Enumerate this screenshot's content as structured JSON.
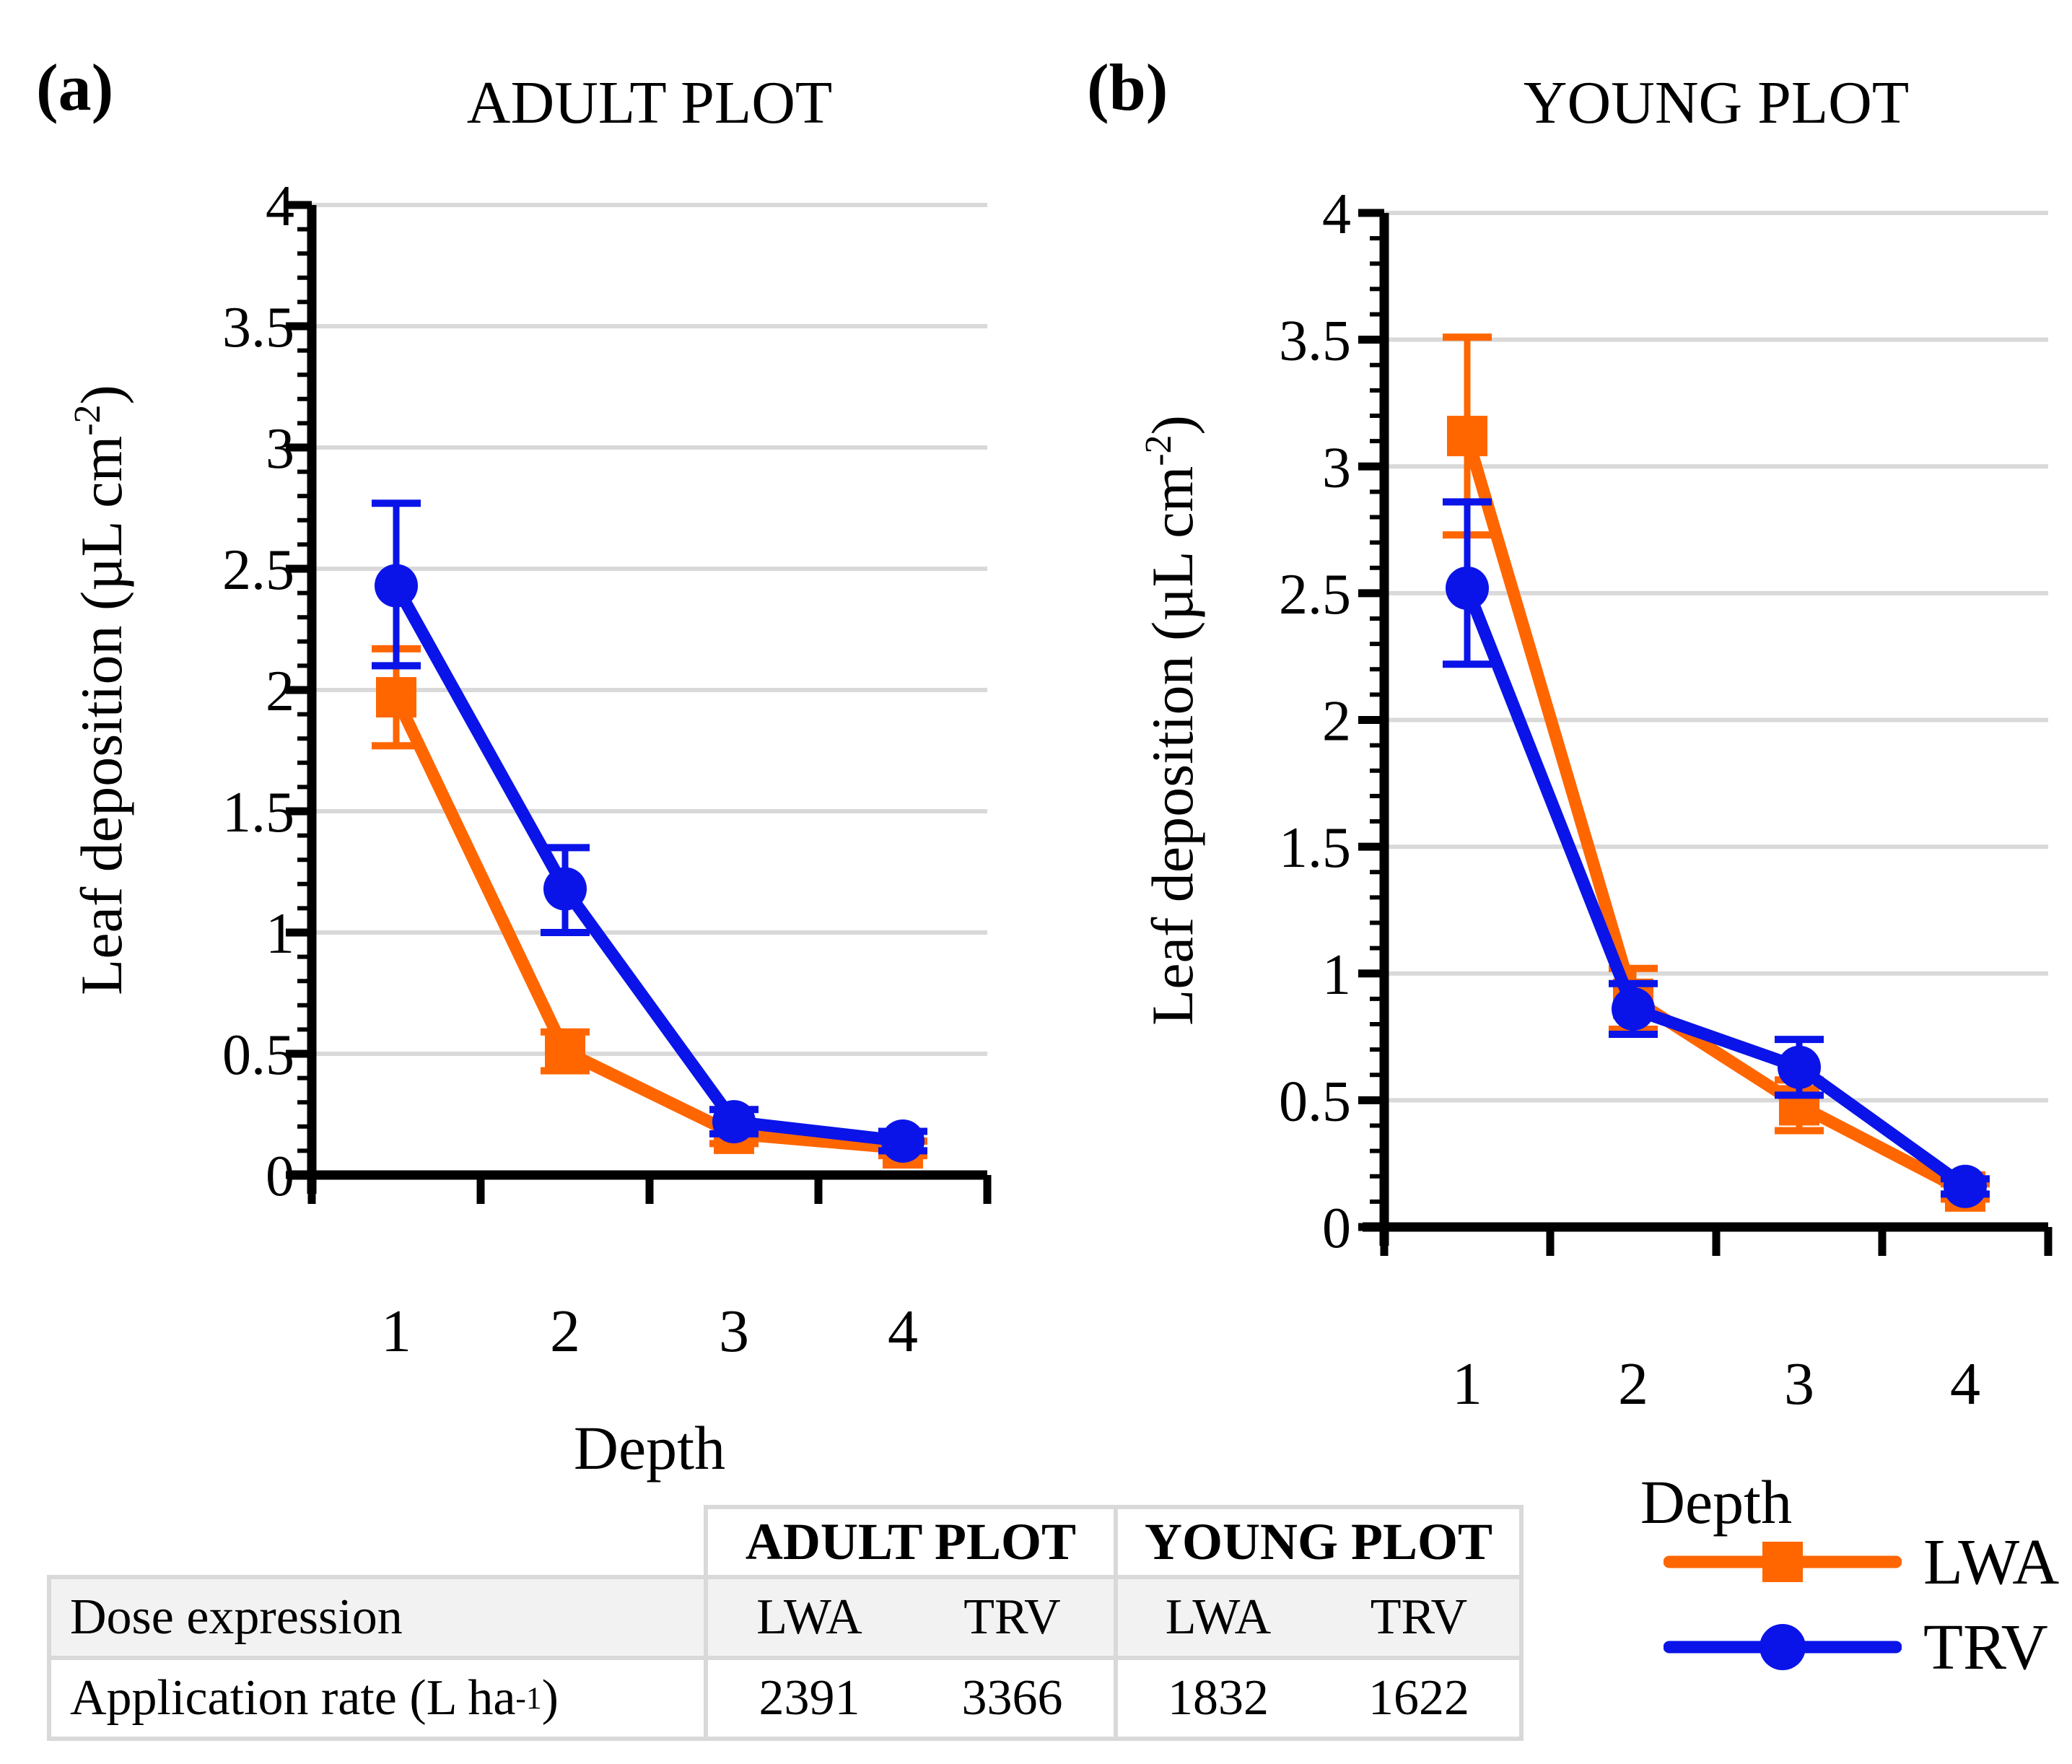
{
  "colors": {
    "lwa": "#FF6600",
    "trv": "#0A14E8",
    "grid": "#D9D9D9",
    "table_border": "#D9D9D9",
    "row_shade": "#F2F2F2"
  },
  "chart_data": [
    {
      "type": "line",
      "panel_label": "(a)",
      "title": "ADULT PLOT",
      "xlabel": "Depth",
      "ylabel_main": "Leaf deposition (µL cm",
      "ylabel_sup": "-2",
      "ylabel_close": ")",
      "categories": [
        "1",
        "2",
        "3",
        "4"
      ],
      "ylim": [
        0,
        4
      ],
      "ytick_step": 0.5,
      "yminor_step": 0.1,
      "grid": true,
      "series": [
        {
          "name": "LWA",
          "color": "#FF6600",
          "marker": "square",
          "values": [
            1.97,
            0.51,
            0.17,
            0.11
          ],
          "err_low": [
            1.77,
            0.43,
            0.13,
            0.08
          ],
          "err_high": [
            2.17,
            0.59,
            0.21,
            0.14
          ]
        },
        {
          "name": "TRV",
          "color": "#0A14E8",
          "marker": "circle",
          "values": [
            2.43,
            1.18,
            0.22,
            0.14
          ],
          "err_low": [
            2.1,
            1.0,
            0.17,
            0.1
          ],
          "err_high": [
            2.77,
            1.35,
            0.27,
            0.18
          ]
        }
      ]
    },
    {
      "type": "line",
      "panel_label": "(b)",
      "title": "YOUNG PLOT",
      "xlabel": "Depth",
      "ylabel_main": "Leaf deposition (µL cm",
      "ylabel_sup": "-2",
      "ylabel_close": ")",
      "categories": [
        "1",
        "2",
        "3",
        "4"
      ],
      "ylim": [
        0,
        4
      ],
      "ytick_step": 0.5,
      "yminor_step": 0.1,
      "grid": true,
      "series": [
        {
          "name": "LWA",
          "color": "#FF6600",
          "marker": "square",
          "values": [
            3.12,
            0.9,
            0.48,
            0.14
          ],
          "err_low": [
            2.73,
            0.78,
            0.38,
            0.11
          ],
          "err_high": [
            3.51,
            1.02,
            0.58,
            0.17
          ]
        },
        {
          "name": "TRV",
          "color": "#0A14E8",
          "marker": "circle",
          "values": [
            2.52,
            0.86,
            0.63,
            0.16
          ],
          "err_low": [
            2.22,
            0.76,
            0.52,
            0.13
          ],
          "err_high": [
            2.86,
            0.96,
            0.74,
            0.19
          ]
        }
      ]
    }
  ],
  "table": {
    "group_headers": [
      "ADULT PLOT",
      "YOUNG PLOT"
    ],
    "row1_label": "Dose expression",
    "row1_cols": [
      "LWA",
      "TRV",
      "LWA",
      "TRV"
    ],
    "row2_label_main": "Application rate (L ha",
    "row2_label_sup": "-1",
    "row2_label_close": ")",
    "row2_values": [
      "2391",
      "3366",
      "1832",
      "1622"
    ]
  },
  "legend": {
    "items": [
      {
        "label": "LWA",
        "marker": "square"
      },
      {
        "label": "TRV",
        "marker": "circle"
      }
    ]
  }
}
